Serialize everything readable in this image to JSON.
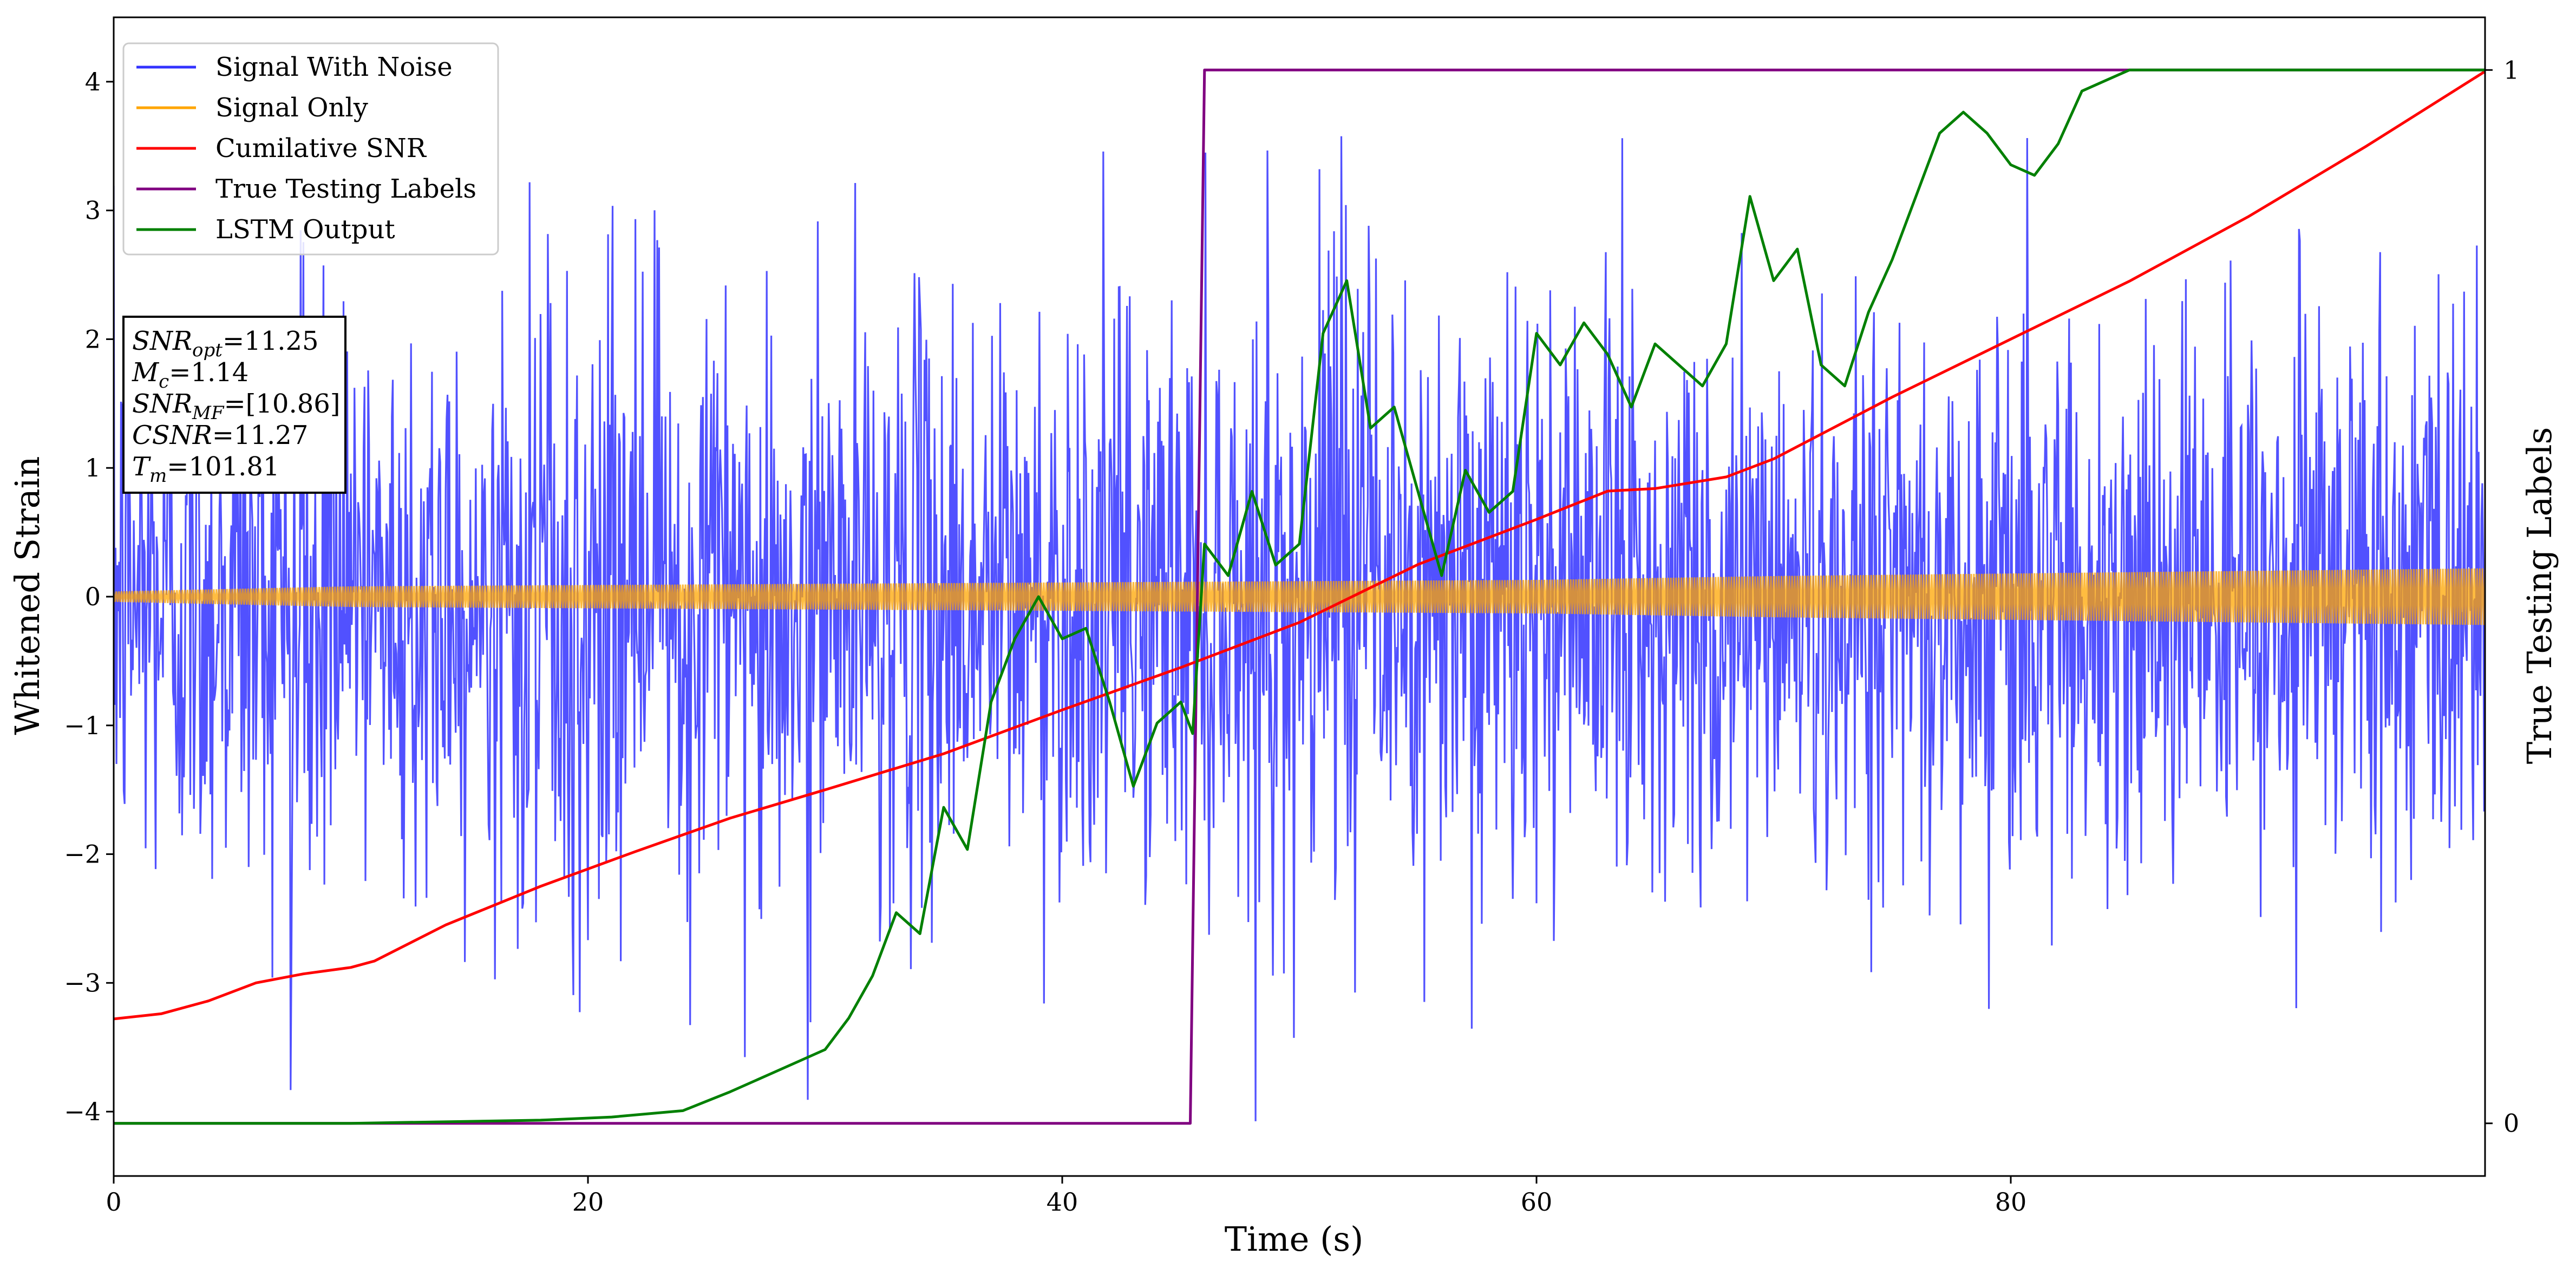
{
  "chart_data": {
    "type": "line",
    "xlabel": "Time (s)",
    "ylabel": "Whitened Strain",
    "y2label": "True Testing Labels",
    "xlim": [
      0,
      100
    ],
    "ylim": [
      -4.5,
      4.5
    ],
    "y2lim": [
      -0.05,
      1.05
    ],
    "xticks": [
      0,
      20,
      40,
      60,
      80
    ],
    "yticks": [
      -4,
      -3,
      -2,
      -1,
      0,
      1,
      2,
      3,
      4
    ],
    "y2ticks": [
      0,
      1
    ],
    "legend_position": "top-left",
    "series": [
      {
        "name": "Signal With Noise",
        "color": "#3333ff",
        "axis": "left",
        "kind": "noise",
        "amplitude_range": [
          -4.1,
          4.0
        ]
      },
      {
        "name": "Signal Only",
        "color": "#ffa500",
        "axis": "left",
        "kind": "chirp",
        "envelope_x": [
          0,
          10,
          30,
          50,
          60,
          70,
          80,
          90,
          100
        ],
        "envelope_y": [
          0.04,
          0.08,
          0.1,
          0.12,
          0.13,
          0.16,
          0.18,
          0.2,
          0.22
        ]
      },
      {
        "name": "Cumilative SNR",
        "color": "#ff0000",
        "axis": "left",
        "x": [
          0,
          2,
          4,
          6,
          8,
          10,
          11,
          14,
          18,
          22,
          26,
          30,
          35,
          40,
          45,
          50,
          55,
          60,
          63,
          65,
          68,
          70,
          75,
          80,
          85,
          90,
          95,
          100
        ],
        "y": [
          -3.28,
          -3.24,
          -3.14,
          -3.0,
          -2.93,
          -2.88,
          -2.83,
          -2.55,
          -2.25,
          -1.98,
          -1.72,
          -1.5,
          -1.22,
          -0.88,
          -0.55,
          -0.2,
          0.25,
          0.6,
          0.82,
          0.84,
          0.93,
          1.07,
          1.55,
          2.0,
          2.45,
          2.95,
          3.5,
          4.08
        ]
      },
      {
        "name": "True Testing Labels",
        "color": "#800080",
        "axis": "right",
        "x": [
          0,
          45.4,
          46.0,
          100
        ],
        "y": [
          0,
          0,
          1,
          1
        ]
      },
      {
        "name": "LSTM Output",
        "color": "#008000",
        "axis": "right",
        "x": [
          0,
          10,
          18,
          21,
          24,
          26,
          28,
          30,
          31,
          32,
          33,
          34,
          35,
          36,
          37,
          38,
          39,
          40,
          41,
          42,
          43,
          44,
          45,
          45.5,
          46,
          47,
          48,
          49,
          50,
          51,
          52,
          53,
          54,
          55,
          56,
          57,
          58,
          59,
          60,
          61,
          62,
          63,
          64,
          65,
          66,
          67,
          68,
          69,
          70,
          71,
          72,
          73,
          74,
          75,
          76,
          77,
          78,
          79,
          80,
          81,
          82,
          83,
          84,
          85,
          86,
          88,
          90,
          95,
          100
        ],
        "y": [
          0,
          0,
          0.003,
          0.006,
          0.012,
          0.03,
          0.05,
          0.07,
          0.1,
          0.14,
          0.2,
          0.18,
          0.3,
          0.26,
          0.4,
          0.46,
          0.5,
          0.46,
          0.47,
          0.4,
          0.32,
          0.38,
          0.4,
          0.37,
          0.55,
          0.52,
          0.6,
          0.53,
          0.55,
          0.75,
          0.8,
          0.66,
          0.68,
          0.6,
          0.52,
          0.62,
          0.58,
          0.6,
          0.75,
          0.72,
          0.76,
          0.73,
          0.68,
          0.74,
          0.72,
          0.7,
          0.74,
          0.88,
          0.8,
          0.83,
          0.72,
          0.7,
          0.77,
          0.82,
          0.88,
          0.94,
          0.96,
          0.94,
          0.91,
          0.9,
          0.93,
          0.98,
          0.99,
          1.0,
          1.0,
          1.0,
          1.0,
          1.0,
          1.0
        ]
      }
    ],
    "annotation": [
      {
        "main": "SNR",
        "sub": "opt",
        "value": "=11.25"
      },
      {
        "main": "M",
        "sub": "c",
        "value": "=1.14"
      },
      {
        "main": "SNR",
        "sub": "MF",
        "value": "=[10.86]"
      },
      {
        "main": "CSNR",
        "sub": "",
        "value": "=11.27"
      },
      {
        "main": "T",
        "sub": "m",
        "value": "=101.81"
      }
    ]
  }
}
